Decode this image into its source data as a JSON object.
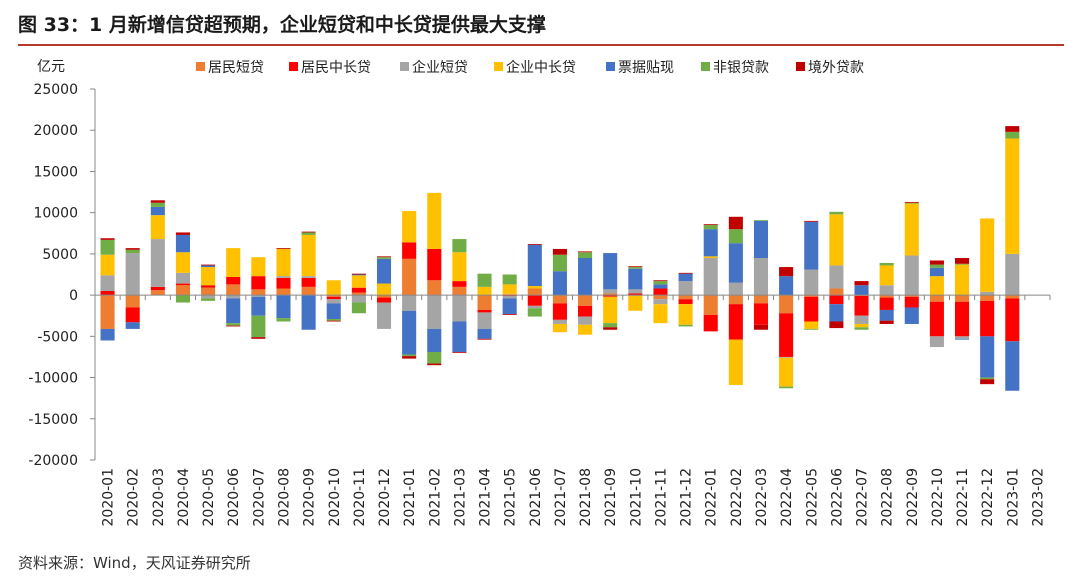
{
  "header": {
    "title": "图 33：1 月新增信贷超预期，企业短贷和中长贷提供最大支撑"
  },
  "footer": {
    "source": "资料来源：Wind，天风证券研究所"
  },
  "chart_data": {
    "type": "bar",
    "stacked": true,
    "title": "图 33：1 月新增信贷超预期，企业短贷和中长贷提供最大支撑",
    "ylabel": "亿元",
    "xlabel": "",
    "ylim": [
      -20000,
      25000
    ],
    "yticks": [
      25000,
      20000,
      15000,
      10000,
      5000,
      0,
      -5000,
      -10000,
      -15000,
      -20000
    ],
    "grid": false,
    "legend_position": "top",
    "categories": [
      "2020-01",
      "2020-02",
      "2020-03",
      "2020-04",
      "2020-05",
      "2020-06",
      "2020-07",
      "2020-08",
      "2020-09",
      "2020-10",
      "2020-11",
      "2020-12",
      "2021-01",
      "2021-02",
      "2021-03",
      "2021-04",
      "2021-05",
      "2021-06",
      "2021-07",
      "2021-08",
      "2021-09",
      "2021-10",
      "2021-11",
      "2021-12",
      "2022-01",
      "2022-02",
      "2022-03",
      "2022-04",
      "2022-05",
      "2022-06",
      "2022-07",
      "2022-08",
      "2022-09",
      "2022-10",
      "2022-11",
      "2022-12",
      "2023-01",
      "2023-02"
    ],
    "series": [
      {
        "name": "居民短贷",
        "color": "#ED7D31",
        "values": [
          -4100,
          -1500,
          600,
          1200,
          900,
          1300,
          700,
          800,
          1000,
          -200,
          300,
          -300,
          4400,
          1800,
          1000,
          -1800,
          100,
          800,
          -1000,
          -1300,
          200,
          -100,
          -500,
          -500,
          -2400,
          -1100,
          -1000,
          -2200,
          -200,
          800,
          -100,
          -300,
          -200,
          -800,
          -800,
          -700,
          -400,
          null
        ]
      },
      {
        "name": "居民中长贷",
        "color": "#FF0000",
        "values": [
          500,
          -1800,
          400,
          200,
          300,
          900,
          1600,
          1300,
          1100,
          -300,
          600,
          -600,
          2000,
          3800,
          700,
          -300,
          -100,
          -1300,
          -2000,
          -1300,
          -200,
          200,
          800,
          -600,
          -2000,
          -4300,
          -2600,
          -5300,
          -3000,
          -1100,
          -2400,
          -1500,
          -1300,
          -4200,
          -4200,
          -4300,
          -5200,
          null
        ]
      },
      {
        "name": "企业短贷",
        "color": "#A5A5A5",
        "values": [
          1900,
          5100,
          5800,
          1300,
          -400,
          -400,
          -200,
          200,
          200,
          -500,
          -900,
          -3200,
          -1900,
          -4100,
          -3200,
          -2000,
          -300,
          -300,
          -500,
          -1000,
          500,
          500,
          -600,
          1700,
          4500,
          1500,
          4500,
          -100,
          3100,
          2800,
          -1000,
          1200,
          4800,
          -1300,
          -300,
          400,
          5000,
          null
        ]
      },
      {
        "name": "企业中长贷",
        "color": "#FFC000",
        "values": [
          2500,
          0,
          2900,
          2500,
          2200,
          3500,
          2300,
          3300,
          5000,
          1800,
          1500,
          1400,
          3800,
          6800,
          3500,
          1000,
          1200,
          300,
          -1000,
          -1200,
          -3200,
          -1800,
          -2300,
          -2500,
          200,
          -5500,
          0,
          -3500,
          -900,
          6200,
          -400,
          2400,
          6300,
          2300,
          3700,
          8900,
          14000,
          null
        ]
      },
      {
        "name": "票据贴现",
        "color": "#4472C4",
        "values": [
          -1400,
          -800,
          1000,
          2100,
          200,
          -3000,
          -2300,
          -2800,
          -4200,
          -1900,
          100,
          3000,
          -5300,
          -2800,
          -3700,
          -1200,
          -1900,
          5000,
          2900,
          4500,
          4400,
          2500,
          500,
          900,
          3300,
          4800,
          4500,
          2300,
          5800,
          -2100,
          1200,
          -1300,
          -2000,
          1000,
          -100,
          -5000,
          -6000,
          null
        ]
      },
      {
        "name": "非银贷款",
        "color": "#70AD47",
        "values": [
          1800,
          400,
          500,
          -900,
          -300,
          -300,
          -2600,
          -400,
          300,
          -200,
          -1300,
          200,
          -200,
          -1400,
          1600,
          1600,
          1200,
          -1000,
          2000,
          700,
          -500,
          200,
          400,
          -200,
          500,
          1700,
          100,
          -200,
          -100,
          300,
          -300,
          300,
          100,
          400,
          100,
          -200,
          800,
          null
        ]
      },
      {
        "name": "境外贷款",
        "color": "#C00000",
        "values": [
          200,
          200,
          300,
          300,
          100,
          -100,
          -200,
          100,
          100,
          -100,
          100,
          100,
          -300,
          -200,
          -100,
          -100,
          -100,
          100,
          700,
          100,
          -300,
          100,
          100,
          100,
          100,
          1500,
          -600,
          1100,
          100,
          -800,
          500,
          -400,
          100,
          500,
          700,
          -600,
          700,
          null
        ]
      }
    ]
  }
}
